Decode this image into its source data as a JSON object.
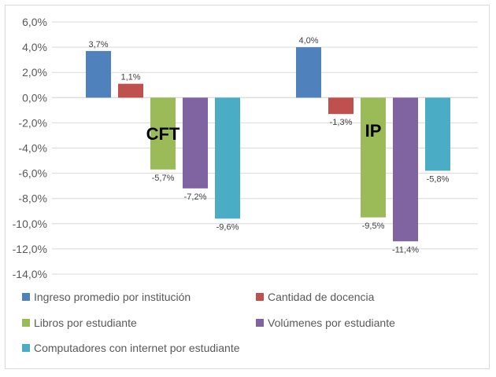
{
  "chart_data": {
    "type": "bar",
    "groups": [
      {
        "label": "CFT",
        "values": [
          3.7,
          1.1,
          -5.7,
          -7.2,
          -9.6
        ],
        "data_labels": [
          "3,7%",
          "1,1%",
          "-5,7%",
          "-7,2%",
          "-9,6%"
        ]
      },
      {
        "label": "IP",
        "values": [
          4.0,
          -1.3,
          -9.5,
          -11.4,
          -5.8
        ],
        "data_labels": [
          "4,0%",
          "-1,3%",
          "-9,5%",
          "-11,4%",
          "-5,8%"
        ]
      }
    ],
    "series": [
      {
        "name": "Ingreso promedio por institución",
        "color": "#4f81bd"
      },
      {
        "name": "Cantidad de docencia",
        "color": "#c0504d"
      },
      {
        "name": "Libros por estudiante",
        "color": "#9bbb59"
      },
      {
        "name": "Volúmenes por estudiante",
        "color": "#8064a2"
      },
      {
        "name": "Computadores con internet por estudiante",
        "color": "#4bacc6"
      }
    ],
    "ylim": [
      -14,
      6
    ],
    "y_ticks": [
      6,
      4,
      2,
      0,
      -2,
      -4,
      -6,
      -8,
      -10,
      -12,
      -14
    ],
    "y_tick_labels": [
      "6,0%",
      "4,0%",
      "2,0%",
      "0,0%",
      "-2,0%",
      "-4,0%",
      "-6,0%",
      "-8,0%",
      "-10,0%",
      "-12,0%",
      "-14,0%"
    ],
    "grid": true,
    "legend_position": "bottom",
    "title": "",
    "xlabel": "",
    "ylabel": ""
  }
}
